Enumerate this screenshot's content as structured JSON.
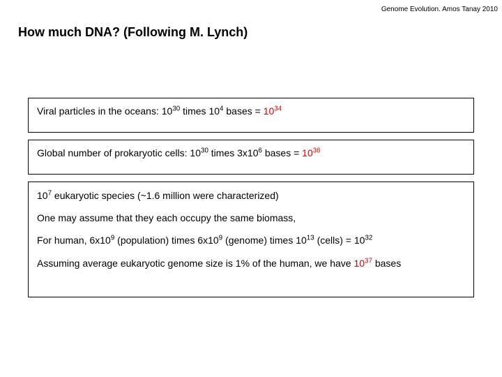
{
  "header": "Genome Evolution. Amos Tanay 2010",
  "title": "How much DNA? (Following M. Lynch)",
  "box1": {
    "prefix": "Viral particles in the oceans: 10",
    "exp1": "30",
    "mid1": " times 10",
    "exp2": "4",
    "mid2": " bases = ",
    "res_base": "10",
    "res_exp": "34"
  },
  "box2": {
    "prefix": "Global number of prokaryotic cells: 10",
    "exp1": "30",
    "mid1": " times 3x10",
    "exp2": "6",
    "mid2": " bases = ",
    "res_base": "10",
    "res_exp": "36"
  },
  "box3": {
    "l1_a": "10",
    "l1_exp": "7",
    "l1_b": " eukaryotic species (~1.6 million were characterized)",
    "l2": "One may assume that they each occupy the same biomass,",
    "l3_a": "For human, 6x10",
    "l3_exp1": "9",
    "l3_b": " (population) times 6x10",
    "l3_exp2": "9",
    "l3_c": "  (genome) times 10",
    "l3_exp3": "13",
    "l3_d": " (cells) = 10",
    "l3_exp4": "32",
    "l4_a": "Assuming average eukaryotic genome size is 1% of the human, we have ",
    "l4_res_base": "10",
    "l4_res_exp": "37",
    "l4_b": " bases"
  },
  "colors": {
    "result": "#e00000",
    "text": "#000000",
    "bg": "#ffffff",
    "border": "#000000"
  }
}
